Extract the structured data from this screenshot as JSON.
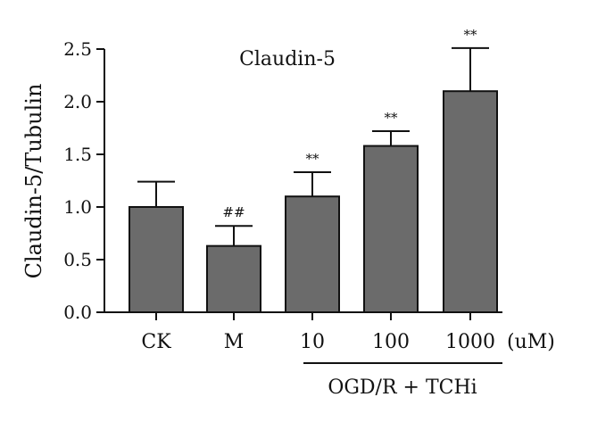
{
  "chart_data": {
    "type": "bar",
    "title": "Claudin-5",
    "ylabel": "Claudin-5/Tubulin",
    "xlabel": "",
    "ylim": [
      0,
      2.5
    ],
    "yticks": [
      "0.0",
      "0.5",
      "1.0",
      "1.5",
      "2.0",
      "2.5"
    ],
    "categories": [
      "CK",
      "M",
      "10",
      "100",
      "1000"
    ],
    "unit_label": "(uM)",
    "group_label": "OGD/R + TCHi",
    "series": [
      {
        "values": [
          1.0,
          0.63,
          1.1,
          1.58,
          2.1
        ],
        "errors": [
          0.24,
          0.19,
          0.23,
          0.14,
          0.41
        ]
      }
    ],
    "annotations": [
      "",
      "##",
      "**",
      "**",
      "**"
    ],
    "bar_color": "#6b6b6b",
    "grid": false
  }
}
